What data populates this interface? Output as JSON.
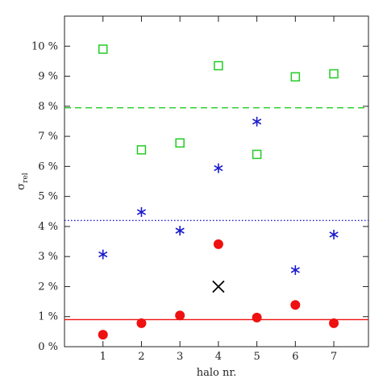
{
  "chart_data": {
    "type": "scatter",
    "xlabel": "halo nr.",
    "ylabel_symbol": "σ",
    "ylabel_subscript": "rel",
    "xlim": [
      0,
      7.9
    ],
    "ylim": [
      0,
      11
    ],
    "xticks": [
      1,
      2,
      3,
      4,
      5,
      6,
      7
    ],
    "xtick_labels": [
      "1",
      "2",
      "3",
      "4",
      "5",
      "6",
      "7"
    ],
    "yticks": [
      0,
      1,
      2,
      3,
      4,
      5,
      6,
      7,
      8,
      9,
      10
    ],
    "ytick_labels": [
      "0 %",
      "1 %",
      "2 %",
      "3 %",
      "4 %",
      "5 %",
      "6 %",
      "7 %",
      "8 %",
      "9 %",
      "10 %"
    ],
    "grid": false,
    "series": [
      {
        "marker": "open-square",
        "color": "#22cc22",
        "x": [
          1,
          2,
          3,
          4,
          5,
          6,
          7
        ],
        "y": [
          9.9,
          6.55,
          6.78,
          9.35,
          6.4,
          8.98,
          9.08
        ]
      },
      {
        "marker": "asterisk",
        "color": "#1a1acc",
        "x": [
          1,
          2,
          3,
          4,
          5,
          6,
          7
        ],
        "y": [
          3.07,
          4.48,
          3.86,
          5.94,
          7.49,
          2.55,
          3.73
        ]
      },
      {
        "marker": "filled-circle",
        "color": "#ee1111",
        "x": [
          1,
          2,
          3,
          4,
          5,
          6,
          7
        ],
        "y": [
          0.4,
          0.78,
          1.04,
          3.41,
          0.97,
          1.39,
          0.78
        ]
      },
      {
        "marker": "cross",
        "color": "#000000",
        "x": [
          4
        ],
        "y": [
          2.0
        ]
      }
    ],
    "reference_lines": [
      {
        "y": 7.95,
        "style": "dashed",
        "color": "#22cc22"
      },
      {
        "y": 4.2,
        "style": "dotted",
        "color": "#1a1acc"
      },
      {
        "y": 0.9,
        "style": "solid",
        "color": "#ee1111"
      }
    ]
  }
}
